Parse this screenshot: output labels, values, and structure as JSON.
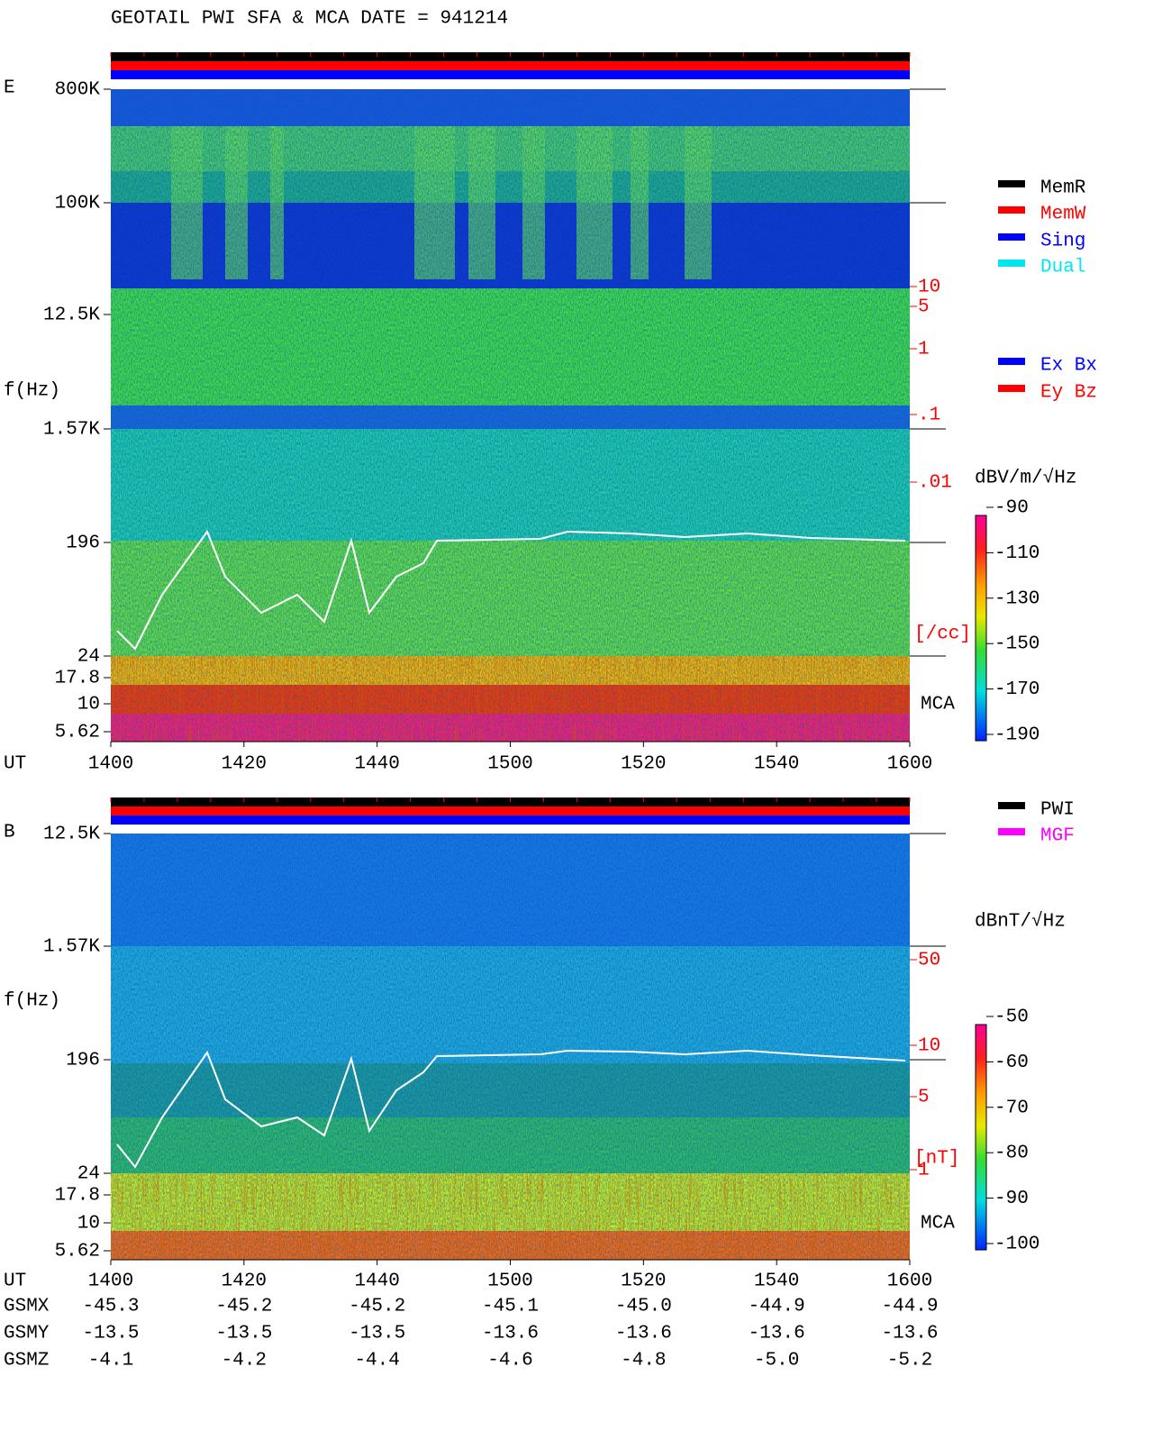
{
  "title": "GEOTAIL  PWI SFA & MCA   DATE = 941214",
  "panels": [
    {
      "component": "E",
      "ylabel": "f(Hz)",
      "yticks": [
        "800K",
        "100K",
        "12.5K",
        "1.57K",
        "196",
        "24",
        "17.8",
        "10",
        "5.62"
      ],
      "xlabel": "UT",
      "xticks": [
        "1400",
        "1420",
        "1440",
        "1500",
        "1520",
        "1540",
        "1600"
      ],
      "mca": "MCA",
      "density_ticks": [
        "10",
        "5",
        "1",
        ".1",
        ".01"
      ],
      "density_unit": "[/cc]",
      "legend": [
        {
          "name": "MemR",
          "color": "#000000"
        },
        {
          "name": "MemW",
          "color": "#ff0000"
        },
        {
          "name": "Sing",
          "color": "#0000ff"
        },
        {
          "name": "Dual",
          "color": "#00e5ee"
        }
      ],
      "channels": [
        {
          "name": "Ex Bx",
          "color": "#0000ff"
        },
        {
          "name": "Ey Bz",
          "color": "#ff0000"
        }
      ],
      "colorbar": {
        "unit": "dBV/m/√Hz",
        "ticks": [
          -90,
          -110,
          -130,
          -150,
          -170,
          -190
        ]
      }
    },
    {
      "component": "B",
      "ylabel": "f(Hz)",
      "yticks": [
        "12.5K",
        "1.57K",
        "196",
        "24",
        "17.8",
        "10",
        "5.62"
      ],
      "xlabel": "UT",
      "xticks": [
        "1400",
        "1420",
        "1440",
        "1500",
        "1520",
        "1540",
        "1600"
      ],
      "mca": "MCA",
      "density_ticks": [
        "50",
        "10",
        "5",
        "1"
      ],
      "density_unit": "[nT]",
      "legend": [
        {
          "name": "PWI",
          "color": "#000000"
        },
        {
          "name": "MGF",
          "color": "#ff00ff"
        }
      ],
      "channels": [],
      "colorbar": {
        "unit": "dBnT/√Hz",
        "ticks": [
          -50,
          -60,
          -70,
          -80,
          -90,
          -100
        ]
      }
    }
  ],
  "ephemeris": [
    {
      "name": "GSMX",
      "values": [
        "-45.3",
        "-45.2",
        "-45.2",
        "-45.1",
        "-45.0",
        "-44.9",
        "-44.9"
      ]
    },
    {
      "name": "GSMY",
      "values": [
        "-13.5",
        "-13.5",
        "-13.5",
        "-13.6",
        "-13.6",
        "-13.6",
        "-13.6"
      ]
    },
    {
      "name": "GSMZ",
      "values": [
        "-4.1",
        "-4.2",
        "-4.4",
        "-4.6",
        "-4.8",
        "-5.0",
        "-5.2"
      ]
    }
  ]
}
